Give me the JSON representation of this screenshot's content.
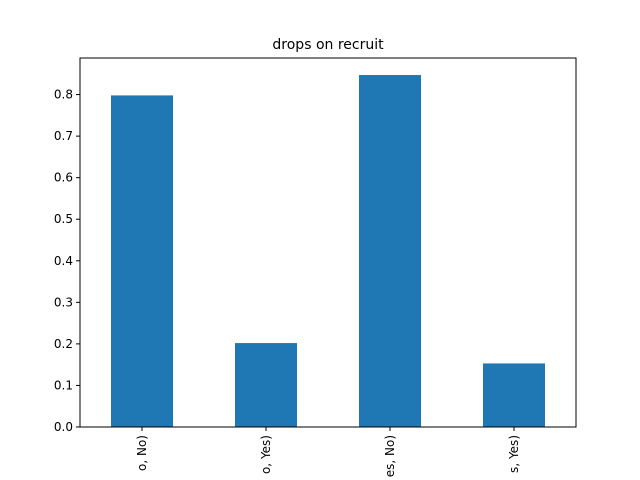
{
  "chart_data": {
    "type": "bar",
    "title": "drops on recruit",
    "xlabel": "",
    "ylabel": "",
    "categories": [
      "(No, No)",
      "(No, Yes)",
      "(Yes, No)",
      "(Yes, Yes)"
    ],
    "visible_category_labels": [
      "o, No)",
      "o, Yes)",
      "es, No)",
      "s, Yes)"
    ],
    "values": [
      0.798,
      0.202,
      0.847,
      0.153
    ],
    "ylim": [
      0,
      0.888
    ],
    "yticks": [
      0.0,
      0.1,
      0.2,
      0.3,
      0.4,
      0.5,
      0.6,
      0.7,
      0.8
    ],
    "ytick_labels": [
      "0.0",
      "0.1",
      "0.2",
      "0.3",
      "0.4",
      "0.5",
      "0.6",
      "0.7",
      "0.8"
    ],
    "grid": false,
    "legend": "none",
    "bar_color": "#1f77b4"
  }
}
